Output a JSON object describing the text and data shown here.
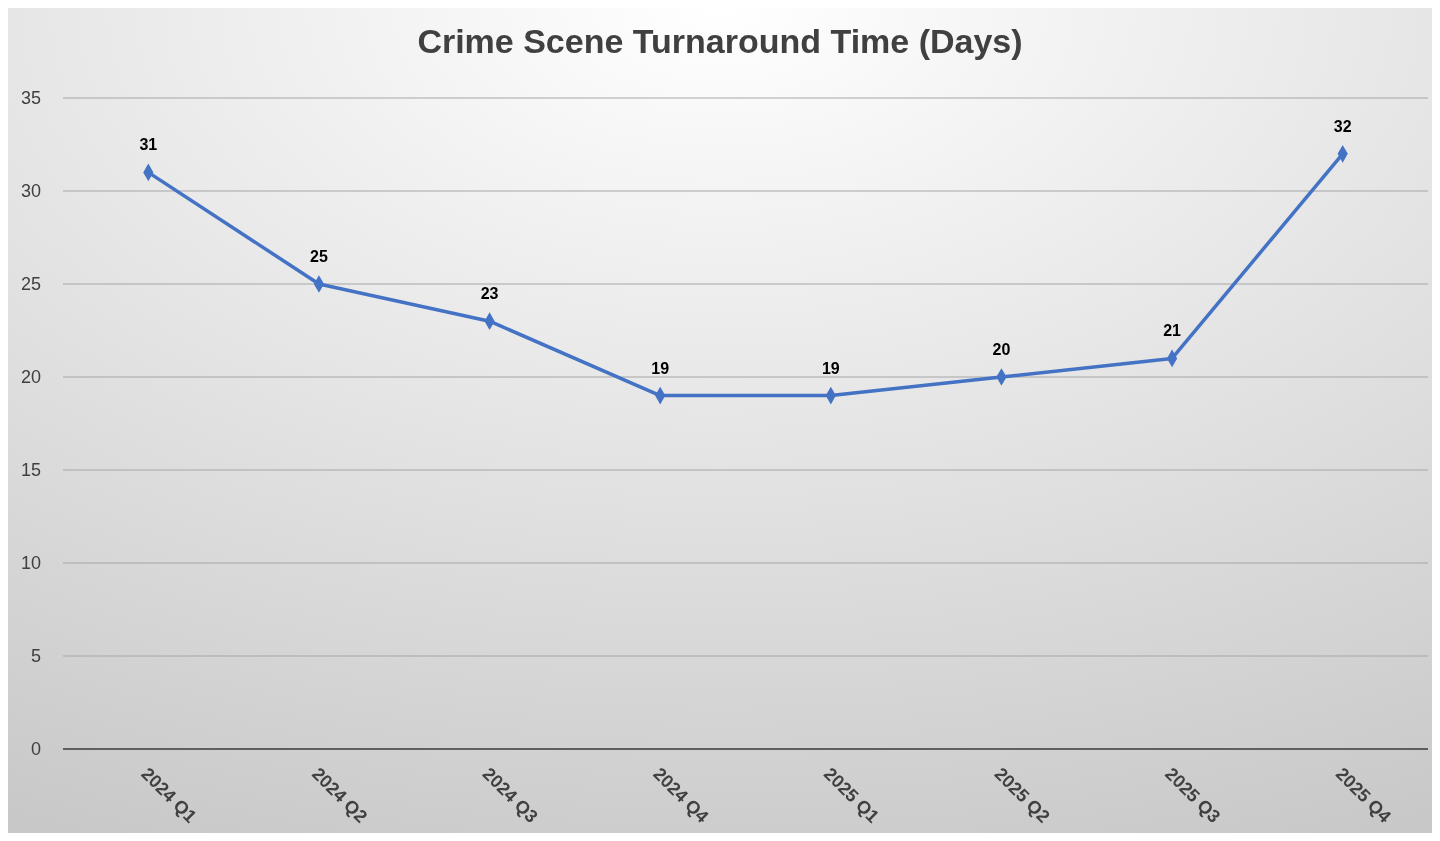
{
  "chart_data": {
    "type": "line",
    "title": "Crime Scene Turnaround Time (Days)",
    "categories": [
      "2024 Q1",
      "2024 Q2",
      "2024 Q3",
      "2024 Q4",
      "2025 Q1",
      "2025 Q2",
      "2025 Q3",
      "2025 Q4"
    ],
    "series": [
      {
        "color": "#4472c4",
        "values": [
          31,
          25,
          23,
          19,
          19,
          20,
          21,
          32
        ]
      }
    ],
    "ylim": [
      0,
      35
    ],
    "yticks": [
      0,
      5,
      10,
      15,
      20,
      25,
      30,
      35
    ],
    "grid": "y",
    "marker": "diamond",
    "line_style": "solid",
    "data_labels": true
  }
}
